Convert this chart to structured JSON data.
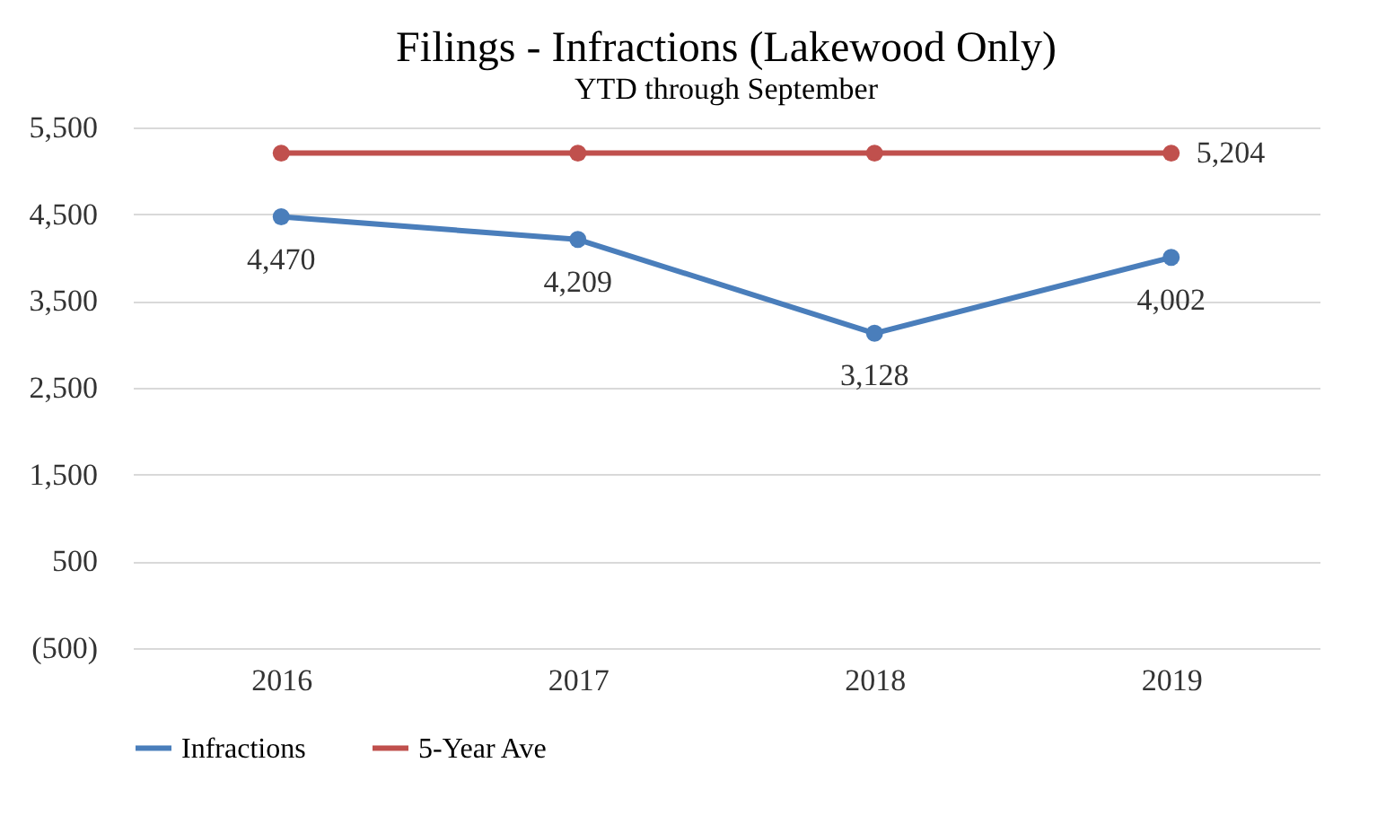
{
  "chart_data": {
    "type": "line",
    "title": "Filings - Infractions (Lakewood Only)",
    "subtitle": "YTD through September",
    "categories": [
      "2016",
      "2017",
      "2018",
      "2019"
    ],
    "series": [
      {
        "name": "Infractions",
        "color": "#4a7ebb",
        "values": [
          4470,
          4209,
          3128,
          4002
        ],
        "value_labels": [
          "4,470",
          "4,209",
          "3,128",
          "4,002"
        ]
      },
      {
        "name": "5-Year Ave",
        "color": "#c0504d",
        "values": [
          5204,
          5204,
          5204,
          5204
        ],
        "value_labels": [
          null,
          null,
          null,
          "5,204"
        ]
      }
    ],
    "ylim": [
      -500,
      5500
    ],
    "yticks": [
      {
        "value": -500,
        "label": "(500)"
      },
      {
        "value": 500,
        "label": "500"
      },
      {
        "value": 1500,
        "label": "1,500"
      },
      {
        "value": 2500,
        "label": "2,500"
      },
      {
        "value": 3500,
        "label": "3,500"
      },
      {
        "value": 4500,
        "label": "4,500"
      },
      {
        "value": 5500,
        "label": "5,500"
      }
    ],
    "grid": "y",
    "legend": "bottom",
    "marker": "circle",
    "line_style": "solid"
  }
}
